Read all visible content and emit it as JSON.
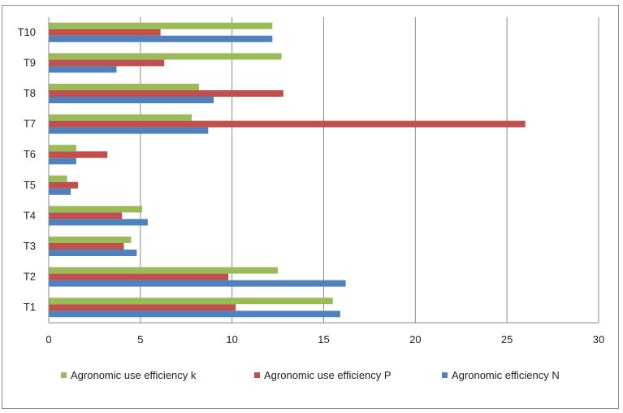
{
  "chart_data": {
    "type": "bar",
    "orientation": "horizontal",
    "categories": [
      "T1",
      "T2",
      "T3",
      "T4",
      "T5",
      "T6",
      "T7",
      "T8",
      "T9",
      "T10"
    ],
    "series": [
      {
        "name": "Agronomic efficiency N",
        "color": "#4f81bd",
        "values": [
          15.9,
          16.2,
          4.8,
          5.4,
          1.2,
          1.5,
          8.7,
          9.0,
          3.7,
          12.2
        ]
      },
      {
        "name": "Agronomic use efficiency P",
        "color": "#c0504d",
        "values": [
          10.2,
          9.8,
          4.1,
          4.0,
          1.6,
          3.2,
          26.0,
          12.8,
          6.3,
          6.1
        ]
      },
      {
        "name": "Agronomic use efficiency k",
        "color": "#9bbb59",
        "values": [
          15.5,
          12.5,
          4.5,
          5.1,
          1.0,
          1.5,
          7.8,
          8.2,
          12.7,
          12.2
        ]
      }
    ],
    "legend_order": [
      "Agronomic use efficiency k",
      "Agronomic use efficiency P",
      "Agronomic efficiency N"
    ],
    "xlim": [
      0,
      30
    ],
    "xticks": [
      0,
      5,
      10,
      15,
      20,
      25,
      30
    ],
    "grid": "vertical",
    "legend_position": "bottom",
    "title": "",
    "xlabel": "",
    "ylabel": ""
  }
}
